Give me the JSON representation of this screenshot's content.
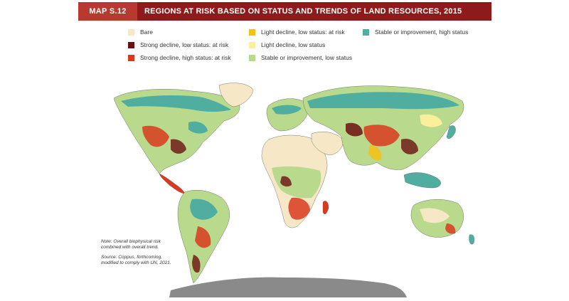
{
  "header": {
    "map_label": "MAP S.12",
    "title": "REGIONS AT RISK BASED ON STATUS AND TRENDS OF LAND RESOURCES, 2015"
  },
  "legend": [
    {
      "label": "Bare",
      "color": "#f6e7c6"
    },
    {
      "label": "Strong decline, low status: at risk",
      "color": "#6b1010"
    },
    {
      "label": "Strong decline, high status: at risk",
      "color": "#d9391f"
    },
    {
      "label": "Light decline, low status: at risk",
      "color": "#f2c21a"
    },
    {
      "label": "Light decline, low status",
      "color": "#fbee9c"
    },
    {
      "label": "Stable or improvement, low status",
      "color": "#b9d98c"
    },
    {
      "label": "Stable or improvement, high status",
      "color": "#4fae9f"
    }
  ],
  "note": {
    "line1": "Note: Overall biophysical risk",
    "line2": "combined with overall trend.",
    "source1": "Source: Coppus, forthcoming,",
    "source2": "modified to comply with UN, 2021."
  },
  "map": {
    "antarctica_color": "#8a8a8a",
    "land_base_color": "#b9d98c"
  }
}
